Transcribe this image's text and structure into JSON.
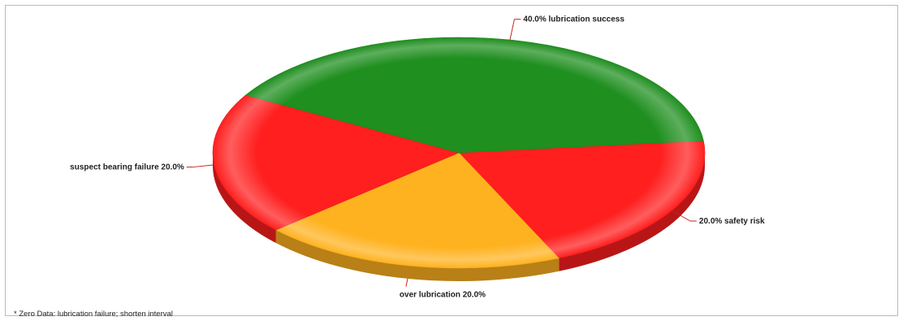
{
  "chart_data": {
    "type": "pie",
    "style": "3d",
    "title": "",
    "slices": [
      {
        "label": "safety risk",
        "value": 20.0,
        "display": "20.0%",
        "color": "#ff1f1f"
      },
      {
        "label": "over lubrication",
        "value": 20.0,
        "display": "20.0%",
        "color": "#ffb21f"
      },
      {
        "label": "suspect bearing failure",
        "value": 20.0,
        "display": "20.0%",
        "color": "#ff1f1f"
      },
      {
        "label": "lubrication success",
        "value": 40.0,
        "display": "40.0%",
        "color": "#1f8f1f"
      }
    ],
    "footnote": "* Zero Data: lubrication failure; shorten interval"
  }
}
